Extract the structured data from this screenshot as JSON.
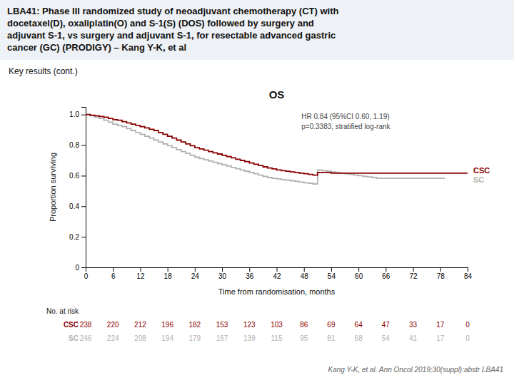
{
  "title": [
    "LBA41: Phase III randomized study of neoadjuvant chemotherapy (CT) with",
    "docetaxel(D), oxaliplatin(O) and S-1(S) (DOS) followed by surgery and",
    "adjuvant S-1, vs surgery and adjuvant S-1, for resectable advanced gastric",
    "cancer (GC) (PRODIGY) – Kang Y-K, et al"
  ],
  "subtitle": "Key results (cont.)",
  "footnote": "Kang Y-K, et al. Ann Oncol 2019;30(suppl):abstr LBA41",
  "chart_data": {
    "type": "step",
    "title": "OS",
    "y_label": "Proportion surviving",
    "x_label": "Time from randomisation, months",
    "annotations": [
      "HR 0.84 (95%CI 0.60, 1.19)",
      "p=0.3383, stratified log-rank"
    ],
    "at_risk_label": "No. at risk",
    "grid": false,
    "xlim": [
      0,
      84
    ],
    "xticks": [
      0,
      6,
      12,
      18,
      24,
      30,
      36,
      42,
      48,
      54,
      60,
      66,
      72,
      78,
      84
    ],
    "ylim": [
      0,
      1.05
    ],
    "yticks": [
      0,
      0.2,
      0.4,
      0.6,
      0.8,
      {
        "value": 1.0,
        "label": "1.0"
      }
    ],
    "series": [
      {
        "name": "CSC",
        "color": "#8b0000",
        "x": [
          0,
          1,
          2,
          3,
          4,
          5,
          6,
          7,
          8,
          9,
          10,
          11,
          12,
          13,
          14,
          15,
          16,
          17,
          18,
          19,
          20,
          21,
          22,
          23,
          24,
          25,
          26,
          27,
          28,
          29,
          30,
          31,
          32,
          33,
          34,
          35,
          36,
          37,
          38,
          39,
          40,
          41,
          42,
          43,
          44,
          45,
          46,
          47,
          48,
          49,
          50,
          51,
          52,
          53,
          54,
          55,
          56,
          57,
          58,
          59,
          60,
          61,
          62,
          63,
          64,
          65,
          66,
          67,
          68,
          69,
          70,
          71,
          72,
          73,
          74,
          75,
          76,
          77,
          78,
          79,
          80,
          81,
          82,
          83,
          84
        ],
        "values": [
          1.0,
          0.996,
          0.992,
          0.988,
          0.983,
          0.975,
          0.967,
          0.963,
          0.954,
          0.946,
          0.937,
          0.929,
          0.921,
          0.913,
          0.904,
          0.896,
          0.883,
          0.871,
          0.858,
          0.846,
          0.833,
          0.821,
          0.808,
          0.796,
          0.783,
          0.775,
          0.767,
          0.758,
          0.75,
          0.742,
          0.733,
          0.725,
          0.717,
          0.708,
          0.7,
          0.692,
          0.683,
          0.675,
          0.667,
          0.658,
          0.65,
          0.645,
          0.638,
          0.633,
          0.629,
          0.625,
          0.621,
          0.617,
          0.613,
          0.608,
          0.604,
          0.621,
          0.621,
          0.621,
          0.617,
          0.617,
          0.617,
          0.617,
          0.617,
          0.617,
          0.617,
          0.617,
          0.617,
          0.617,
          0.617,
          0.617,
          0.617,
          0.617,
          0.617,
          0.617,
          0.617,
          0.617,
          0.617,
          0.617,
          0.617,
          0.617,
          0.617,
          0.617,
          0.617,
          0.617,
          0.617,
          0.617,
          0.617,
          0.617,
          0.617
        ],
        "number_at_risk": [
          238,
          220,
          212,
          196,
          182,
          153,
          123,
          103,
          86,
          69,
          64,
          47,
          33,
          17,
          0
        ]
      },
      {
        "name": "SC",
        "color": "#b0b0b0",
        "x": [
          0,
          1,
          2,
          3,
          4,
          5,
          6,
          7,
          8,
          9,
          10,
          11,
          12,
          13,
          14,
          15,
          16,
          17,
          18,
          19,
          20,
          21,
          22,
          23,
          24,
          25,
          26,
          27,
          28,
          29,
          30,
          31,
          32,
          33,
          34,
          35,
          36,
          37,
          38,
          39,
          40,
          41,
          42,
          43,
          44,
          45,
          46,
          47,
          48,
          49,
          50,
          51,
          52,
          53,
          54,
          55,
          56,
          57,
          58,
          59,
          60,
          61,
          62,
          63,
          64,
          65,
          66,
          67,
          68,
          69,
          70,
          71,
          72,
          73,
          74,
          75,
          76,
          77,
          78,
          79
        ],
        "values": [
          1.0,
          0.992,
          0.984,
          0.975,
          0.963,
          0.95,
          0.937,
          0.929,
          0.921,
          0.908,
          0.896,
          0.883,
          0.871,
          0.858,
          0.846,
          0.833,
          0.821,
          0.808,
          0.796,
          0.783,
          0.771,
          0.758,
          0.746,
          0.733,
          0.721,
          0.712,
          0.704,
          0.696,
          0.688,
          0.679,
          0.671,
          0.663,
          0.654,
          0.646,
          0.638,
          0.629,
          0.621,
          0.613,
          0.604,
          0.596,
          0.588,
          0.583,
          0.579,
          0.575,
          0.571,
          0.567,
          0.563,
          0.558,
          0.554,
          0.55,
          0.546,
          0.638,
          0.633,
          0.629,
          0.625,
          0.621,
          0.617,
          0.613,
          0.608,
          0.604,
          0.6,
          0.596,
          0.592,
          0.588,
          0.584,
          0.583,
          0.583,
          0.583,
          0.583,
          0.583,
          0.583,
          0.583,
          0.583,
          0.583,
          0.583,
          0.583,
          0.583,
          0.583,
          0.583,
          0.583
        ],
        "number_at_risk": [
          246,
          224,
          208,
          194,
          179,
          167,
          139,
          115,
          95,
          81,
          68,
          54,
          41,
          17,
          0
        ]
      }
    ]
  }
}
